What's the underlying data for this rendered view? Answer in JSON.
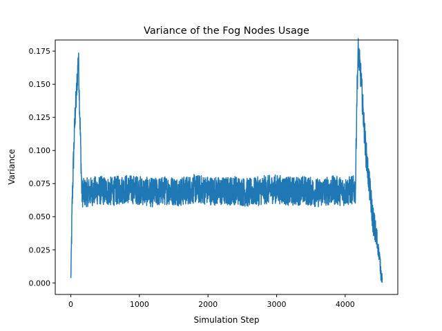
{
  "chart_data": {
    "type": "line",
    "title": "Variance of the Fog Nodes Usage",
    "xlabel": "Simulation Step",
    "ylabel": "Variance",
    "xlim": [
      -227,
      4767
    ],
    "ylim": [
      -0.0087,
      0.1834
    ],
    "xticks": [
      0,
      1000,
      2000,
      3000,
      4000
    ],
    "xtick_labels": [
      "0",
      "1000",
      "2000",
      "3000",
      "4000"
    ],
    "yticks": [
      0,
      0.025,
      0.05,
      0.075,
      0.1,
      0.125,
      0.15,
      0.175
    ],
    "ytick_labels": [
      "0.000",
      "0.025",
      "0.050",
      "0.075",
      "0.100",
      "0.125",
      "0.150",
      "0.175"
    ],
    "grid": false,
    "legend": "none",
    "series": [
      {
        "color": "#1f77b4",
        "x": [
          0,
          20,
          40,
          60,
          80,
          100,
          110,
          120,
          140,
          160,
          200,
          400,
          600,
          800,
          1000,
          1200,
          1400,
          1600,
          1800,
          2000,
          2200,
          2400,
          2600,
          2800,
          3000,
          3200,
          3400,
          3600,
          3800,
          4000,
          4100,
          4150,
          4170,
          4190,
          4210,
          4230,
          4260,
          4300,
          4350,
          4400,
          4450,
          4500,
          4520,
          4540
        ],
        "y": [
          0.002,
          0.06,
          0.095,
          0.125,
          0.14,
          0.16,
          0.173,
          0.15,
          0.11,
          0.068,
          0.068,
          0.07,
          0.069,
          0.071,
          0.07,
          0.068,
          0.07,
          0.069,
          0.071,
          0.07,
          0.069,
          0.07,
          0.068,
          0.07,
          0.071,
          0.069,
          0.07,
          0.068,
          0.07,
          0.069,
          0.07,
          0.07,
          0.14,
          0.175,
          0.165,
          0.155,
          0.13,
          0.1,
          0.075,
          0.05,
          0.035,
          0.02,
          0.008,
          0.003
        ],
        "noise_amplitude": 0.011
      }
    ]
  }
}
